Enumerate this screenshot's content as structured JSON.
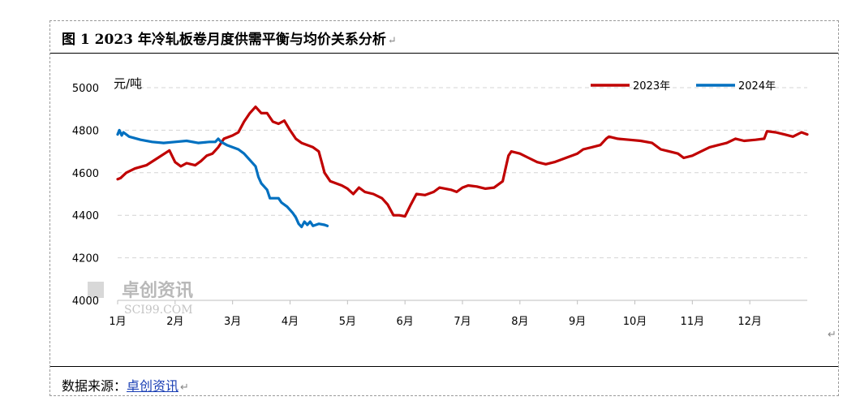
{
  "header": {
    "title": "图 1 2023 年冷轧板卷月度供需平衡与均价关系分析",
    "return_mark": "↵"
  },
  "footer": {
    "source_label": "数据来源：",
    "source_name": "卓创资讯",
    "return_mark": "↵"
  },
  "side_mark": "↵",
  "watermark": {
    "text": "卓创资讯",
    "subtext": "SCI99.COM"
  },
  "chart_data": {
    "type": "line",
    "ylabel": "元/吨",
    "ylim": [
      4000,
      5000
    ],
    "yticks": [
      4000,
      4200,
      4400,
      4600,
      4800,
      5000
    ],
    "xlim": [
      1,
      13
    ],
    "xticks": [
      {
        "label": "1月",
        "x": 1
      },
      {
        "label": "2月",
        "x": 2
      },
      {
        "label": "3月",
        "x": 3
      },
      {
        "label": "4月",
        "x": 4
      },
      {
        "label": "5月",
        "x": 5
      },
      {
        "label": "6月",
        "x": 6
      },
      {
        "label": "7月",
        "x": 7
      },
      {
        "label": "8月",
        "x": 8
      },
      {
        "label": "9月",
        "x": 9
      },
      {
        "label": "10月",
        "x": 10
      },
      {
        "label": "11月",
        "x": 11
      },
      {
        "label": "12月",
        "x": 12
      }
    ],
    "grid": true,
    "legend_position": "top-right",
    "series": [
      {
        "name": "2023年",
        "color": "#c00000",
        "points": [
          [
            1.0,
            4570
          ],
          [
            1.05,
            4575
          ],
          [
            1.15,
            4600
          ],
          [
            1.3,
            4620
          ],
          [
            1.5,
            4635
          ],
          [
            1.7,
            4670
          ],
          [
            1.9,
            4705
          ],
          [
            2.0,
            4650
          ],
          [
            2.1,
            4630
          ],
          [
            2.2,
            4645
          ],
          [
            2.35,
            4635
          ],
          [
            2.45,
            4655
          ],
          [
            2.55,
            4680
          ],
          [
            2.65,
            4690
          ],
          [
            2.75,
            4720
          ],
          [
            2.85,
            4760
          ],
          [
            3.0,
            4775
          ],
          [
            3.1,
            4790
          ],
          [
            3.2,
            4840
          ],
          [
            3.3,
            4880
          ],
          [
            3.4,
            4910
          ],
          [
            3.5,
            4880
          ],
          [
            3.6,
            4880
          ],
          [
            3.7,
            4840
          ],
          [
            3.8,
            4830
          ],
          [
            3.9,
            4845
          ],
          [
            4.0,
            4800
          ],
          [
            4.1,
            4760
          ],
          [
            4.2,
            4740
          ],
          [
            4.3,
            4730
          ],
          [
            4.4,
            4720
          ],
          [
            4.5,
            4700
          ],
          [
            4.55,
            4650
          ],
          [
            4.6,
            4600
          ],
          [
            4.7,
            4560
          ],
          [
            4.8,
            4550
          ],
          [
            4.9,
            4540
          ],
          [
            5.0,
            4525
          ],
          [
            5.1,
            4500
          ],
          [
            5.2,
            4530
          ],
          [
            5.3,
            4510
          ],
          [
            5.45,
            4500
          ],
          [
            5.6,
            4480
          ],
          [
            5.7,
            4450
          ],
          [
            5.8,
            4400
          ],
          [
            5.9,
            4400
          ],
          [
            6.0,
            4395
          ],
          [
            6.1,
            4450
          ],
          [
            6.2,
            4500
          ],
          [
            6.35,
            4495
          ],
          [
            6.5,
            4510
          ],
          [
            6.6,
            4530
          ],
          [
            6.8,
            4520
          ],
          [
            6.9,
            4510
          ],
          [
            7.0,
            4530
          ],
          [
            7.1,
            4540
          ],
          [
            7.25,
            4535
          ],
          [
            7.4,
            4525
          ],
          [
            7.55,
            4530
          ],
          [
            7.7,
            4560
          ],
          [
            7.75,
            4620
          ],
          [
            7.8,
            4680
          ],
          [
            7.85,
            4700
          ],
          [
            8.0,
            4690
          ],
          [
            8.15,
            4670
          ],
          [
            8.3,
            4650
          ],
          [
            8.45,
            4640
          ],
          [
            8.6,
            4650
          ],
          [
            8.7,
            4660
          ],
          [
            8.8,
            4670
          ],
          [
            9.0,
            4690
          ],
          [
            9.1,
            4710
          ],
          [
            9.25,
            4720
          ],
          [
            9.4,
            4730
          ],
          [
            9.5,
            4760
          ],
          [
            9.55,
            4770
          ],
          [
            9.7,
            4760
          ],
          [
            9.9,
            4755
          ],
          [
            10.1,
            4750
          ],
          [
            10.3,
            4740
          ],
          [
            10.45,
            4710
          ],
          [
            10.6,
            4700
          ],
          [
            10.75,
            4690
          ],
          [
            10.85,
            4670
          ],
          [
            11.0,
            4680
          ],
          [
            11.15,
            4700
          ],
          [
            11.3,
            4720
          ],
          [
            11.45,
            4730
          ],
          [
            11.6,
            4740
          ],
          [
            11.75,
            4760
          ],
          [
            11.9,
            4750
          ],
          [
            12.1,
            4755
          ],
          [
            12.25,
            4760
          ],
          [
            12.3,
            4795
          ],
          [
            12.45,
            4790
          ],
          [
            12.6,
            4780
          ],
          [
            12.75,
            4770
          ],
          [
            12.9,
            4790
          ],
          [
            13.0,
            4780
          ]
        ]
      },
      {
        "name": "2024年",
        "color": "#0070c0",
        "points": [
          [
            1.0,
            4780
          ],
          [
            1.03,
            4800
          ],
          [
            1.07,
            4775
          ],
          [
            1.1,
            4790
          ],
          [
            1.2,
            4770
          ],
          [
            1.4,
            4755
          ],
          [
            1.6,
            4745
          ],
          [
            1.8,
            4740
          ],
          [
            2.0,
            4745
          ],
          [
            2.2,
            4750
          ],
          [
            2.4,
            4740
          ],
          [
            2.6,
            4745
          ],
          [
            2.7,
            4745
          ],
          [
            2.75,
            4760
          ],
          [
            2.8,
            4745
          ],
          [
            2.9,
            4730
          ],
          [
            3.0,
            4720
          ],
          [
            3.1,
            4710
          ],
          [
            3.2,
            4690
          ],
          [
            3.3,
            4660
          ],
          [
            3.4,
            4630
          ],
          [
            3.45,
            4580
          ],
          [
            3.5,
            4550
          ],
          [
            3.6,
            4520
          ],
          [
            3.65,
            4480
          ],
          [
            3.8,
            4480
          ],
          [
            3.85,
            4460
          ],
          [
            3.95,
            4440
          ],
          [
            4.05,
            4410
          ],
          [
            4.1,
            4390
          ],
          [
            4.15,
            4360
          ],
          [
            4.2,
            4345
          ],
          [
            4.25,
            4370
          ],
          [
            4.3,
            4355
          ],
          [
            4.35,
            4370
          ],
          [
            4.4,
            4350
          ],
          [
            4.5,
            4360
          ],
          [
            4.6,
            4355
          ],
          [
            4.65,
            4350
          ]
        ]
      }
    ]
  }
}
